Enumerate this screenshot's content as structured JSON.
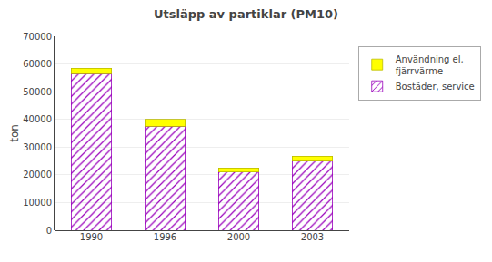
{
  "chart_data": {
    "type": "bar",
    "stacked": true,
    "title": "Utsläpp av partiklar (PM10)",
    "ylabel": "ton",
    "categories": [
      "1990",
      "1996",
      "2000",
      "2003"
    ],
    "series": [
      {
        "name": "Bostäder, service",
        "color": "#AAAAEE",
        "values": [
          56500,
          37500,
          21000,
          25000
        ]
      },
      {
        "name": "Användning el,\nfjärrvärme",
        "color": "#FFFF00",
        "values": [
          2000,
          2500,
          1500,
          1800
        ]
      }
    ],
    "ylim": [
      0,
      70000
    ],
    "yticks": [
      0,
      10000,
      20000,
      30000,
      40000,
      50000,
      60000,
      70000
    ],
    "grid": true,
    "legend": "right"
  }
}
